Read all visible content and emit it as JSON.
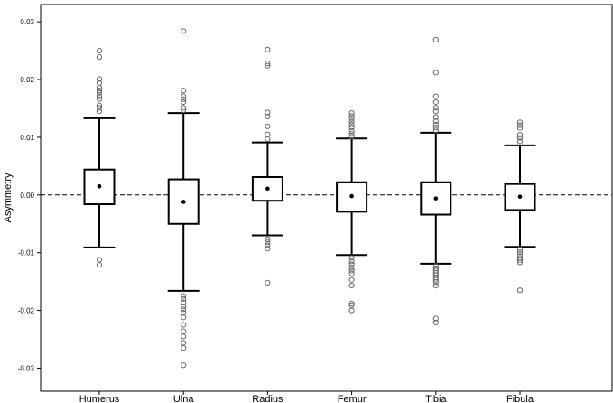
{
  "chart_data": {
    "type": "boxplot",
    "title": "",
    "xlabel": "",
    "ylabel": "Asymmetry",
    "ylim": [
      -0.034,
      0.033
    ],
    "yticks": [
      -0.03,
      -0.02,
      -0.01,
      0.0,
      0.01,
      0.02,
      0.03
    ],
    "ytick_labels": [
      "-0.03",
      "-0.02",
      "-0.01",
      "0.00",
      "0.01",
      "0.02",
      "0.03"
    ],
    "grid": false,
    "reference_line": {
      "y": 0.0,
      "style": "dashed"
    },
    "colors": {
      "box_fill": "#ffffff",
      "box_stroke": "#000000",
      "outlier_stroke": "#666666",
      "mean_dot": "#000000"
    },
    "categories": [
      "Humerus",
      "Ulna",
      "Radius",
      "Femur",
      "Tibia",
      "Fibula"
    ],
    "boxes": [
      {
        "label": "Humerus",
        "whisker_low": -0.0091,
        "q1": -0.0016,
        "median": 0.0015,
        "q3": 0.0044,
        "whisker_high": 0.0133,
        "mean": 0.0015,
        "outliers": [
          0.025,
          0.0239,
          0.0201,
          0.0194,
          0.0186,
          0.0181,
          0.0177,
          0.0171,
          0.0166,
          0.0155,
          0.0151,
          0.0145,
          -0.0112,
          -0.0121
        ]
      },
      {
        "label": "Ulna",
        "whisker_low": -0.0166,
        "q1": -0.005,
        "median": -0.0012,
        "q3": 0.0027,
        "whisker_high": 0.0142,
        "mean": -0.0012,
        "outliers": [
          0.0284,
          0.0181,
          0.0171,
          0.0166,
          0.0161,
          0.0151,
          0.0147,
          -0.0175,
          -0.018,
          -0.0186,
          -0.0193,
          -0.0198,
          -0.0204,
          -0.0212,
          -0.0225,
          -0.0236,
          -0.0245,
          -0.0256,
          -0.0265,
          -0.0295
        ]
      },
      {
        "label": "Radius",
        "whisker_low": -0.007,
        "q1": -0.001,
        "median": 0.0011,
        "q3": 0.0031,
        "whisker_high": 0.0091,
        "mean": 0.0011,
        "outliers": [
          0.0252,
          0.0228,
          0.0224,
          0.0143,
          0.0136,
          0.0119,
          0.0105,
          0.0097,
          -0.0077,
          -0.0082,
          -0.0087,
          -0.0093,
          -0.0152
        ]
      },
      {
        "label": "Femur",
        "whisker_low": -0.0104,
        "q1": -0.0029,
        "median": -0.0002,
        "q3": 0.0022,
        "whisker_high": 0.0098,
        "mean": -0.0002,
        "outliers": [
          0.0142,
          0.0137,
          0.0132,
          0.0127,
          0.0122,
          0.0117,
          0.0111,
          0.0106,
          0.0101,
          -0.0109,
          -0.0115,
          -0.012,
          -0.0126,
          -0.0131,
          -0.0136,
          -0.0147,
          -0.0157,
          -0.0188,
          -0.0191,
          -0.02
        ]
      },
      {
        "label": "Tibia",
        "whisker_low": -0.0119,
        "q1": -0.0034,
        "median": -0.0006,
        "q3": 0.0022,
        "whisker_high": 0.0108,
        "mean": -0.0006,
        "outliers": [
          0.0269,
          0.0212,
          0.0171,
          0.0161,
          0.0151,
          0.0145,
          0.0135,
          0.0128,
          0.0122,
          0.0117,
          0.0112,
          -0.0123,
          -0.0127,
          -0.0131,
          -0.0135,
          -0.0139,
          -0.0143,
          -0.0147,
          -0.0151,
          -0.0157,
          -0.0214,
          -0.0221
        ]
      },
      {
        "label": "Fibula",
        "whisker_low": -0.009,
        "q1": -0.0026,
        "median": -0.0003,
        "q3": 0.0019,
        "whisker_high": 0.0086,
        "mean": -0.0003,
        "outliers": [
          0.0126,
          0.0121,
          0.0116,
          0.0104,
          0.0099,
          0.0093,
          -0.0094,
          -0.0099,
          -0.0104,
          -0.0109,
          -0.0113,
          -0.0117,
          -0.0165
        ]
      }
    ]
  }
}
